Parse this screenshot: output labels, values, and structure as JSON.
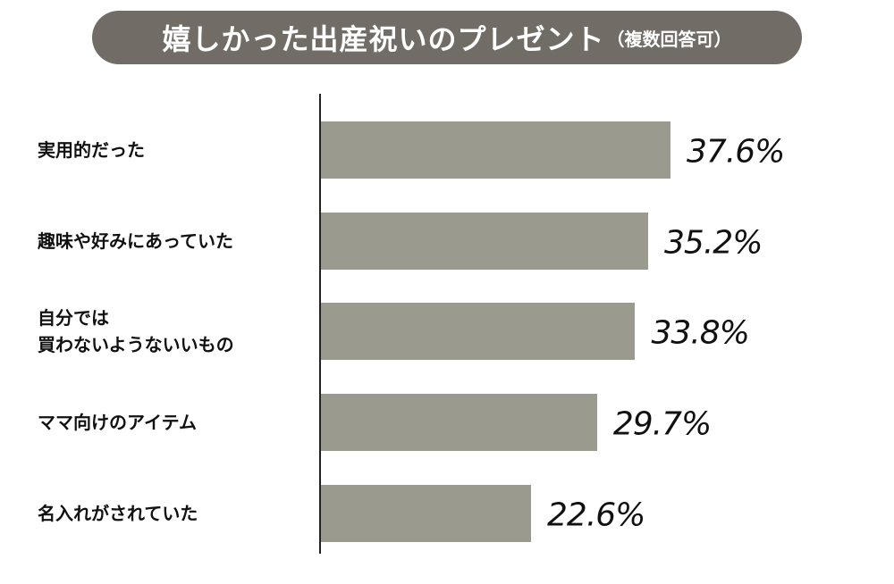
{
  "chart_data": {
    "type": "bar",
    "orientation": "horizontal",
    "title": "嬉しかった出産祝いのプレゼント",
    "subtitle": "（複数回答可）",
    "categories": [
      "実用的だった",
      "趣味や好みにあっていた",
      "自分では\n買わないようないいもの",
      "ママ向けのアイテム",
      "名入れがされていた"
    ],
    "values": [
      37.6,
      35.2,
      33.8,
      29.7,
      22.6
    ],
    "value_labels": [
      "37.6%",
      "35.2%",
      "33.8%",
      "29.7%",
      "22.6%"
    ],
    "color": "#9b9a8e"
  }
}
